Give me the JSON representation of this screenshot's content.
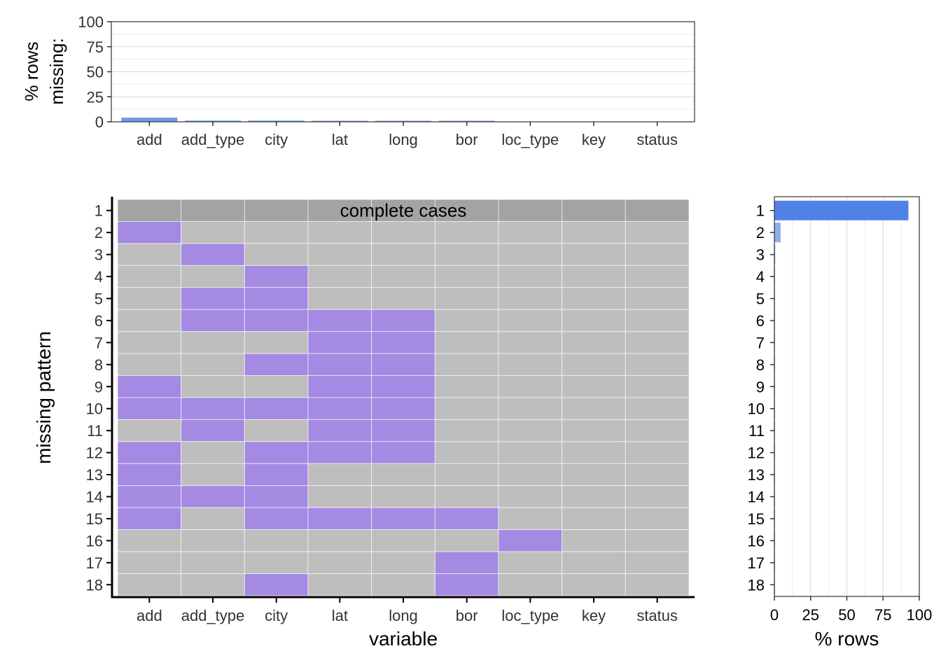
{
  "colors": {
    "missing": "#A58AE3",
    "observed": "#BEBEBE",
    "complete_row": "#A3A3A3",
    "bar": "#5082E6",
    "bar_light": "#8FAEEE",
    "grid": "#D9D9D9",
    "axis": "#000000",
    "text": "#333333"
  },
  "chart_data": [
    {
      "type": "bar",
      "categories": [
        "add",
        "add_type",
        "city",
        "lat",
        "long",
        "bor",
        "loc_type",
        "key",
        "status"
      ],
      "values": [
        4.2,
        1.2,
        1.2,
        0.5,
        0.5,
        0.1,
        0.0,
        0.0,
        0.0
      ],
      "title": "",
      "xlabel": "",
      "ylabel": [
        "% rows",
        "missing:"
      ],
      "ylim": [
        0,
        100
      ],
      "yticks": [
        0,
        25,
        50,
        75,
        100
      ],
      "grid": true
    },
    {
      "type": "heatmap",
      "xlabel": "variable",
      "ylabel": "missing pattern",
      "variables": [
        "add",
        "add_type",
        "city",
        "lat",
        "long",
        "bor",
        "loc_type",
        "key",
        "status"
      ],
      "rows": [
        "1",
        "2",
        "3",
        "4",
        "5",
        "6",
        "7",
        "8",
        "9",
        "10",
        "11",
        "12",
        "13",
        "14",
        "15",
        "16",
        "17",
        "18"
      ],
      "annotation": "complete cases",
      "complete_row": 1,
      "missing_cells": [
        [],
        [
          "add"
        ],
        [
          "add_type"
        ],
        [
          "city"
        ],
        [
          "add_type",
          "city"
        ],
        [
          "add_type",
          "city",
          "lat",
          "long"
        ],
        [
          "lat",
          "long"
        ],
        [
          "city",
          "lat",
          "long"
        ],
        [
          "add",
          "lat",
          "long"
        ],
        [
          "add",
          "add_type",
          "city",
          "lat",
          "long"
        ],
        [
          "add_type",
          "lat",
          "long"
        ],
        [
          "add",
          "city",
          "lat",
          "long"
        ],
        [
          "add",
          "city"
        ],
        [
          "add",
          "add_type",
          "city"
        ],
        [
          "add",
          "city",
          "lat",
          "long",
          "bor"
        ],
        [
          "loc_type"
        ],
        [
          "bor"
        ],
        [
          "city",
          "bor"
        ]
      ]
    },
    {
      "type": "bar",
      "orientation": "horizontal",
      "categories": [
        "1",
        "2",
        "3",
        "4",
        "5",
        "6",
        "7",
        "8",
        "9",
        "10",
        "11",
        "12",
        "13",
        "14",
        "15",
        "16",
        "17",
        "18"
      ],
      "values": [
        92.5,
        4.3,
        0.6,
        0.3,
        0.2,
        0.2,
        0.2,
        0.1,
        0.1,
        0.1,
        0.1,
        0.1,
        0.1,
        0.1,
        0.1,
        0.1,
        0.1,
        0.1
      ],
      "xlabel": "% rows",
      "xlim": [
        0,
        100
      ],
      "xticks": [
        0,
        25,
        50,
        75,
        100
      ],
      "grid": true
    }
  ]
}
